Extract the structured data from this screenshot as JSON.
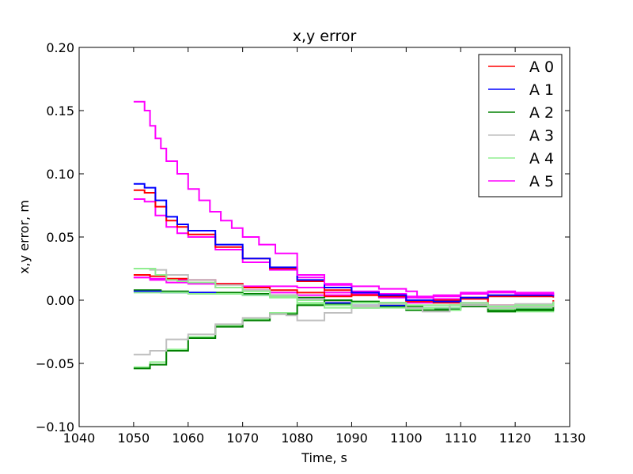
{
  "chart_data": {
    "type": "line",
    "title": "x,y error",
    "xlabel": "Time, s",
    "ylabel": "x,y error, m",
    "xlim": [
      1040,
      1130
    ],
    "ylim": [
      -0.1,
      0.2
    ],
    "xticks": [
      "1040",
      "1050",
      "1060",
      "1070",
      "1080",
      "1090",
      "1100",
      "1110",
      "1120",
      "1130"
    ],
    "yticks": [
      "−0.10",
      "−0.05",
      "0.00",
      "0.05",
      "0.10",
      "0.15",
      "0.20"
    ],
    "grid": false,
    "legend_position": "top-right",
    "series": [
      {
        "name": "A 0",
        "color": "#ff0000",
        "x": [
          1050,
          1052,
          1054,
          1056,
          1058,
          1060,
          1065,
          1070,
          1075,
          1080,
          1085,
          1090,
          1095,
          1100,
          1105,
          1110,
          1115,
          1120,
          1127
        ],
        "y": [
          0.087,
          0.085,
          0.074,
          0.063,
          0.058,
          0.052,
          0.042,
          0.033,
          0.025,
          0.015,
          0.008,
          0.004,
          0.003,
          0.0,
          -0.002,
          0.001,
          0.003,
          0.003,
          0.002
        ]
      },
      {
        "name": "A 1",
        "color": "#0000ff",
        "x": [
          1050,
          1052,
          1054,
          1056,
          1058,
          1060,
          1065,
          1070,
          1075,
          1080,
          1085,
          1090,
          1095,
          1100,
          1105,
          1110,
          1115,
          1120,
          1127
        ],
        "y": [
          0.092,
          0.089,
          0.079,
          0.066,
          0.06,
          0.055,
          0.044,
          0.033,
          0.026,
          0.016,
          0.01,
          0.006,
          0.004,
          0.0,
          -0.001,
          0.002,
          0.004,
          0.004,
          0.003
        ]
      },
      {
        "name": "A 2",
        "color": "#008000",
        "x": [
          1050,
          1053,
          1056,
          1060,
          1065,
          1070,
          1075,
          1080,
          1085,
          1090,
          1095,
          1100,
          1103,
          1108,
          1115,
          1120,
          1127
        ],
        "y": [
          -0.054,
          -0.051,
          -0.04,
          -0.03,
          -0.021,
          -0.016,
          -0.011,
          -0.004,
          0.0,
          -0.001,
          -0.002,
          -0.005,
          -0.008,
          -0.004,
          -0.009,
          -0.008,
          -0.002
        ]
      },
      {
        "name": "A 3",
        "color": "#bfbfbf",
        "x": [
          1050,
          1053,
          1056,
          1060,
          1065,
          1070,
          1075,
          1078,
          1080,
          1083,
          1085,
          1090,
          1095,
          1100,
          1103,
          1108,
          1115,
          1120,
          1127
        ],
        "y": [
          -0.043,
          -0.04,
          -0.031,
          -0.027,
          -0.019,
          -0.014,
          -0.011,
          -0.012,
          -0.016,
          -0.016,
          -0.01,
          -0.005,
          -0.003,
          -0.006,
          -0.009,
          -0.004,
          -0.006,
          -0.005,
          -0.003
        ]
      },
      {
        "name": "A 4",
        "color": "#90ee90",
        "x": [
          1050,
          1052,
          1054,
          1056,
          1058,
          1060,
          1065,
          1070,
          1075,
          1080,
          1085,
          1090,
          1095,
          1100,
          1105,
          1110,
          1115,
          1120,
          1127
        ],
        "y": [
          0.025,
          0.025,
          0.02,
          0.016,
          0.015,
          0.014,
          0.01,
          0.007,
          0.003,
          -0.002,
          -0.006,
          -0.002,
          -0.002,
          -0.004,
          -0.004,
          -0.002,
          -0.005,
          -0.004,
          -0.001
        ]
      },
      {
        "name": "A 5",
        "color": "#ff00ff",
        "x": [
          1050,
          1051,
          1052,
          1053,
          1054,
          1055,
          1056,
          1058,
          1060,
          1062,
          1064,
          1066,
          1068,
          1070,
          1073,
          1076,
          1080,
          1085,
          1090,
          1095,
          1100,
          1102,
          1105,
          1110,
          1115,
          1120,
          1127
        ],
        "y": [
          0.157,
          0.157,
          0.15,
          0.138,
          0.128,
          0.12,
          0.11,
          0.1,
          0.088,
          0.079,
          0.07,
          0.063,
          0.057,
          0.05,
          0.044,
          0.037,
          0.02,
          0.013,
          0.011,
          0.009,
          0.007,
          0.002,
          0.004,
          0.006,
          0.006,
          0.005,
          0.004
        ]
      }
    ],
    "extra_traces": [
      {
        "color": "#ff00ff",
        "x": [
          1050,
          1052,
          1054,
          1056,
          1058,
          1060,
          1065,
          1070,
          1075,
          1080,
          1085,
          1090,
          1095,
          1100,
          1105,
          1110,
          1115,
          1120,
          1127
        ],
        "y": [
          0.08,
          0.078,
          0.067,
          0.058,
          0.053,
          0.05,
          0.04,
          0.03,
          0.024,
          0.018,
          0.012,
          0.007,
          0.005,
          0.002,
          0.003,
          0.005,
          0.007,
          0.006,
          0.004
        ]
      },
      {
        "color": "#ff00ff",
        "x": [
          1050,
          1053,
          1056,
          1060,
          1065,
          1070,
          1075,
          1080,
          1085,
          1090,
          1095,
          1100,
          1105,
          1110,
          1115,
          1120,
          1127
        ],
        "y": [
          0.018,
          0.017,
          0.016,
          0.016,
          0.013,
          0.011,
          0.011,
          0.01,
          0.006,
          0.004,
          0.002,
          -0.002,
          0.001,
          0.002,
          -0.004,
          -0.004,
          0.0
        ]
      },
      {
        "color": "#ff00ff",
        "x": [
          1050,
          1053,
          1056,
          1060,
          1065,
          1070,
          1075,
          1080,
          1085,
          1090,
          1095,
          1100,
          1105,
          1110,
          1115,
          1120,
          1127
        ],
        "y": [
          0.018,
          0.016,
          0.014,
          0.013,
          0.01,
          0.008,
          0.006,
          0.004,
          0.004,
          0.005,
          0.004,
          0.003,
          0.0,
          -0.002,
          -0.006,
          -0.005,
          -0.001
        ]
      },
      {
        "color": "#ff0000",
        "x": [
          1050,
          1053,
          1056,
          1060,
          1065,
          1070,
          1075,
          1080,
          1085,
          1090,
          1095,
          1100,
          1105,
          1110,
          1115,
          1120,
          1127
        ],
        "y": [
          0.02,
          0.019,
          0.017,
          0.016,
          0.013,
          0.01,
          0.008,
          0.006,
          0.003,
          0.004,
          0.003,
          -0.001,
          0.0,
          0.002,
          -0.004,
          -0.004,
          0.0
        ]
      },
      {
        "color": "#008000",
        "x": [
          1050,
          1055,
          1060,
          1065,
          1070,
          1075,
          1080,
          1085,
          1090,
          1095,
          1100,
          1105,
          1110,
          1115,
          1120,
          1127
        ],
        "y": [
          0.008,
          0.007,
          0.006,
          0.006,
          0.005,
          0.004,
          0.002,
          -0.003,
          -0.006,
          -0.005,
          -0.008,
          -0.007,
          -0.005,
          -0.008,
          -0.007,
          -0.002
        ]
      },
      {
        "color": "#0000ff",
        "x": [
          1050,
          1055,
          1060,
          1065,
          1070,
          1075,
          1080,
          1085,
          1090,
          1095,
          1100,
          1105,
          1110,
          1115,
          1120,
          1127
        ],
        "y": [
          0.007,
          0.006,
          0.006,
          0.005,
          0.004,
          0.003,
          0.001,
          -0.002,
          -0.004,
          -0.004,
          -0.006,
          -0.006,
          -0.004,
          -0.006,
          -0.006,
          -0.002
        ]
      },
      {
        "color": "#90ee90",
        "x": [
          1050,
          1053,
          1056,
          1060,
          1065,
          1070,
          1075,
          1080,
          1085,
          1090,
          1095,
          1100,
          1105,
          1110,
          1115,
          1120,
          1127
        ],
        "y": [
          -0.053,
          -0.049,
          -0.039,
          -0.029,
          -0.02,
          -0.015,
          -0.01,
          -0.003,
          0.0,
          -0.002,
          -0.003,
          -0.006,
          -0.008,
          -0.004,
          -0.009,
          -0.009,
          -0.002
        ]
      },
      {
        "color": "#90ee90",
        "x": [
          1050,
          1055,
          1060,
          1065,
          1070,
          1075,
          1080,
          1085,
          1090,
          1095,
          1100,
          1105,
          1110,
          1115,
          1120,
          1127
        ],
        "y": [
          0.006,
          0.006,
          0.005,
          0.005,
          0.004,
          0.002,
          0.0,
          -0.004,
          -0.006,
          -0.006,
          -0.007,
          -0.006,
          -0.004,
          -0.007,
          -0.006,
          -0.003
        ]
      },
      {
        "color": "#bfbfbf",
        "x": [
          1050,
          1053,
          1056,
          1060,
          1065,
          1070,
          1075,
          1080,
          1085,
          1090,
          1095,
          1100,
          1105,
          1110,
          1115,
          1120,
          1127
        ],
        "y": [
          0.025,
          0.024,
          0.02,
          0.016,
          0.012,
          0.008,
          0.004,
          0.001,
          -0.001,
          -0.004,
          -0.002,
          -0.004,
          -0.004,
          -0.003,
          -0.004,
          -0.003,
          -0.001
        ]
      }
    ]
  }
}
